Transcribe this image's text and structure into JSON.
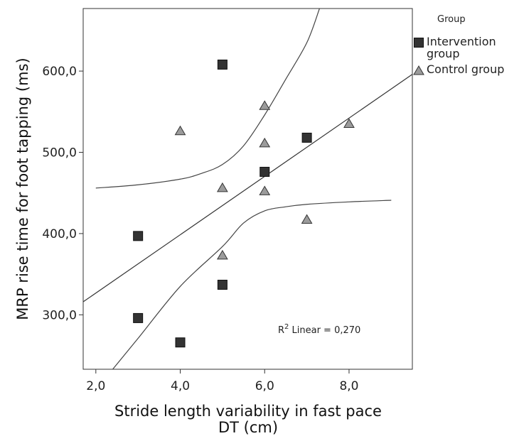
{
  "chart_data": {
    "type": "scatter",
    "xlabel": "Stride length variability in fast pace DT (cm)",
    "xlabel_lines": [
      "Stride length variability in fast pace",
      "DT (cm)"
    ],
    "ylabel": "MRP rise time for foot tapping (ms)",
    "xlim": [
      1.7,
      9.5
    ],
    "ylim": [
      233,
      677
    ],
    "xticks": [
      2,
      4,
      6,
      8
    ],
    "xtick_labels": [
      "2,0",
      "4,0",
      "6,0",
      "8,0"
    ],
    "yticks": [
      300,
      400,
      500,
      600
    ],
    "ytick_labels": [
      "300,0",
      "400,0",
      "500,0",
      "600,0"
    ],
    "grid": false,
    "legend": {
      "title": "Group",
      "position": "right",
      "entries": [
        {
          "label": "Intervention group",
          "marker": "square",
          "color": "#333333"
        },
        {
          "label": "Control group",
          "marker": "triangle",
          "color": "#9b9b9b"
        }
      ]
    },
    "series": [
      {
        "name": "Intervention group",
        "marker": "square",
        "color": "#333333",
        "points": [
          {
            "x": 5,
            "y": 608
          },
          {
            "x": 7,
            "y": 518
          },
          {
            "x": 6,
            "y": 476
          },
          {
            "x": 3,
            "y": 397
          },
          {
            "x": 5,
            "y": 337
          },
          {
            "x": 3,
            "y": 296
          },
          {
            "x": 4,
            "y": 266
          }
        ]
      },
      {
        "name": "Control group",
        "marker": "triangle",
        "color": "#9b9b9b",
        "points": [
          {
            "x": 6,
            "y": 557
          },
          {
            "x": 8,
            "y": 535
          },
          {
            "x": 4,
            "y": 526
          },
          {
            "x": 6,
            "y": 511
          },
          {
            "x": 5,
            "y": 456
          },
          {
            "x": 6,
            "y": 452
          },
          {
            "x": 7,
            "y": 417
          },
          {
            "x": 5,
            "y": 373
          }
        ]
      }
    ],
    "fit_line": {
      "type": "linear",
      "points": [
        [
          1.7,
          316
        ],
        [
          9.5,
          596
        ]
      ]
    },
    "confidence_band": {
      "upper": [
        [
          2.0,
          456
        ],
        [
          3.0,
          460
        ],
        [
          4.0,
          467
        ],
        [
          4.5,
          474
        ],
        [
          5.0,
          485
        ],
        [
          5.5,
          508
        ],
        [
          6.0,
          546
        ],
        [
          6.5,
          590
        ],
        [
          7.0,
          635
        ],
        [
          7.3,
          677
        ]
      ],
      "lower": [
        [
          2.4,
          233
        ],
        [
          3.0,
          271
        ],
        [
          4.0,
          335
        ],
        [
          5.0,
          384
        ],
        [
          5.5,
          413
        ],
        [
          6.0,
          428
        ],
        [
          6.5,
          433
        ],
        [
          7.0,
          436
        ],
        [
          8.0,
          439
        ],
        [
          9.0,
          441
        ]
      ]
    },
    "annotation": {
      "text": "R² Linear = 0,270",
      "prefix": "R",
      "sup": "2",
      "suffix": " Linear = 0,270",
      "x": 8.0,
      "y": 282
    },
    "colors": {
      "intervention": "#333333",
      "control": "#9b9b9b",
      "line": "#333333"
    }
  }
}
